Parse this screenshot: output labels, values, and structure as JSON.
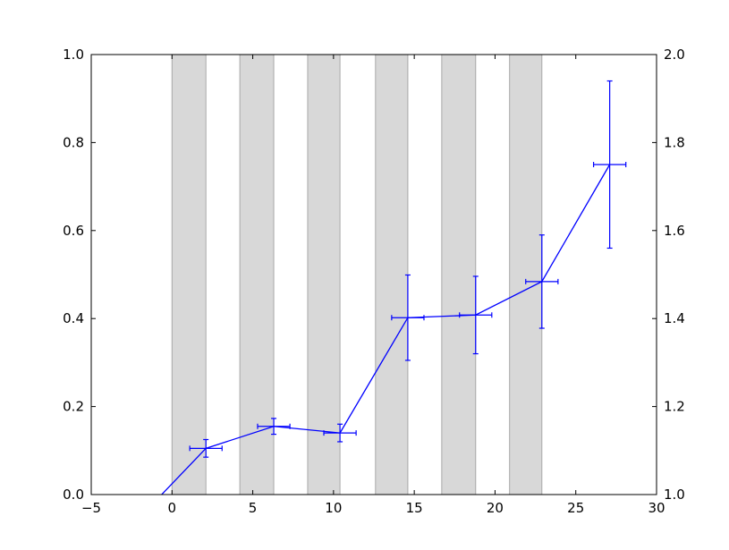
{
  "chart_data": {
    "type": "line",
    "title": "",
    "xlabel": "",
    "ylabel": "",
    "xlim": [
      -5,
      30
    ],
    "ylim": [
      0,
      1
    ],
    "y2lim": [
      1,
      2
    ],
    "grid": false,
    "x_ticks": [
      "−5",
      "0",
      "5",
      "10",
      "15",
      "20",
      "25",
      "30"
    ],
    "y_ticks": [
      "0.0",
      "0.2",
      "0.4",
      "0.6",
      "0.8",
      "1.0"
    ],
    "y2_ticks": [
      "1.0",
      "1.2",
      "1.4",
      "1.6",
      "1.8",
      "2.0"
    ],
    "shaded_bands": [
      [
        0,
        2.1
      ],
      [
        4.2,
        6.3
      ],
      [
        8.4,
        10.4
      ],
      [
        12.6,
        14.6
      ],
      [
        16.7,
        18.8
      ],
      [
        20.9,
        22.9
      ]
    ],
    "band_color": "#d8d8d8",
    "series": [
      {
        "color": "#0000ff",
        "x": [
          -0.9,
          2.1,
          6.3,
          10.4,
          14.6,
          18.8,
          22.9,
          27.1
        ],
        "y": [
          -0.01,
          0.105,
          0.155,
          0.14,
          0.402,
          0.408,
          0.484,
          0.75
        ],
        "xerr": [
          1.0,
          1.0,
          1.0,
          1.0,
          1.0,
          1.0,
          1.0,
          1.0
        ],
        "yerr": [
          0.0,
          0.02,
          0.018,
          0.02,
          0.097,
          0.088,
          0.106,
          0.19
        ]
      }
    ]
  }
}
